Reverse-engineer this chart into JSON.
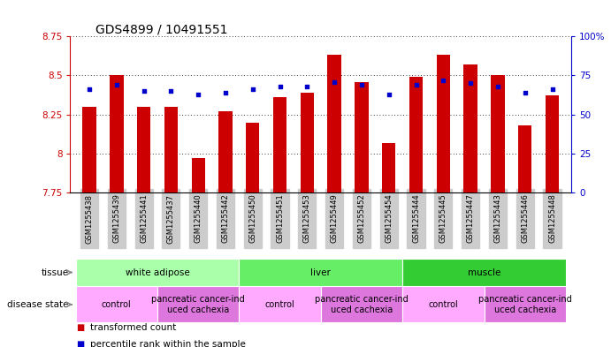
{
  "title": "GDS4899 / 10491551",
  "samples": [
    "GSM1255438",
    "GSM1255439",
    "GSM1255441",
    "GSM1255437",
    "GSM1255440",
    "GSM1255442",
    "GSM1255450",
    "GSM1255451",
    "GSM1255453",
    "GSM1255449",
    "GSM1255452",
    "GSM1255454",
    "GSM1255444",
    "GSM1255445",
    "GSM1255447",
    "GSM1255443",
    "GSM1255446",
    "GSM1255448"
  ],
  "bar_values": [
    8.3,
    8.5,
    8.3,
    8.3,
    7.97,
    8.27,
    8.2,
    8.36,
    8.39,
    8.63,
    8.46,
    8.07,
    8.49,
    8.63,
    8.57,
    8.5,
    8.18,
    8.37
  ],
  "dot_values": [
    66,
    69,
    65,
    65,
    63,
    64,
    66,
    68,
    68,
    71,
    69,
    63,
    69,
    72,
    70,
    68,
    64,
    66
  ],
  "ylim_left": [
    7.75,
    8.75
  ],
  "ylim_right": [
    0,
    100
  ],
  "yticks_left": [
    7.75,
    8.0,
    8.25,
    8.5,
    8.75
  ],
  "ytick_labels_left": [
    "7.75",
    "8",
    "8.25",
    "8.5",
    "8.75"
  ],
  "yticks_right": [
    0,
    25,
    50,
    75,
    100
  ],
  "ytick_labels_right": [
    "0",
    "25",
    "50",
    "75",
    "100%"
  ],
  "bar_color": "#cc0000",
  "dot_color": "#0000cc",
  "bar_bottom": 7.75,
  "tissue_groups": [
    {
      "label": "white adipose",
      "start": 0,
      "end": 6,
      "color": "#aaffaa"
    },
    {
      "label": "liver",
      "start": 6,
      "end": 12,
      "color": "#66ee66"
    },
    {
      "label": "muscle",
      "start": 12,
      "end": 18,
      "color": "#33cc33"
    }
  ],
  "disease_groups": [
    {
      "label": "control",
      "start": 0,
      "end": 3,
      "color": "#ffaaff"
    },
    {
      "label": "pancreatic cancer-ind\nuced cachexia",
      "start": 3,
      "end": 6,
      "color": "#dd77dd"
    },
    {
      "label": "control",
      "start": 6,
      "end": 9,
      "color": "#ffaaff"
    },
    {
      "label": "pancreatic cancer-ind\nuced cachexia",
      "start": 9,
      "end": 12,
      "color": "#dd77dd"
    },
    {
      "label": "control",
      "start": 12,
      "end": 15,
      "color": "#ffaaff"
    },
    {
      "label": "pancreatic cancer-ind\nuced cachexia",
      "start": 15,
      "end": 18,
      "color": "#dd77dd"
    }
  ],
  "legend_items": [
    {
      "label": "transformed count",
      "color": "#cc0000"
    },
    {
      "label": "percentile rank within the sample",
      "color": "#0000cc"
    }
  ],
  "tissue_label": "tissue",
  "disease_label": "disease state",
  "bg_color": "#ffffff",
  "tick_color_left": "#cc0000",
  "tick_color_right": "#0000cc",
  "title_fontsize": 10,
  "axis_fontsize": 7.5,
  "sample_fontsize": 6,
  "annotation_fontsize": 7.5,
  "legend_fontsize": 7.5,
  "xticklabel_bg": "#cccccc"
}
